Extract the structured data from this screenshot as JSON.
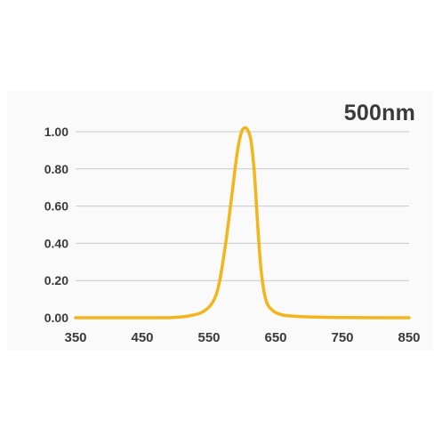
{
  "chart_data": {
    "type": "line",
    "title": "500nm",
    "xlabel": "",
    "ylabel": "",
    "xlim": [
      350,
      850
    ],
    "ylim": [
      0,
      1.0
    ],
    "x_ticks": [
      350,
      450,
      550,
      650,
      750,
      850
    ],
    "x_tick_labels": [
      "350",
      "450",
      "550",
      "650",
      "750",
      "850"
    ],
    "y_ticks": [
      0,
      0.2,
      0.4,
      0.6,
      0.8,
      1.0
    ],
    "y_tick_labels": [
      "0.00",
      "0.20",
      "0.40",
      "0.60",
      "0.80",
      "1.00"
    ],
    "grid": "horizontal",
    "legend": "none",
    "line_color": "#f2b51c",
    "grid_color": "#c8c8c8",
    "series": [
      {
        "x": [
          350,
          400,
          450,
          480,
          500,
          520,
          540,
          555,
          565,
          575,
          585,
          592,
          598,
          603,
          608,
          613,
          618,
          623,
          628,
          635,
          645,
          660,
          680,
          700,
          750,
          800,
          850
        ],
        "y": [
          0.0,
          0.0,
          0.0,
          0.0,
          0.002,
          0.01,
          0.03,
          0.08,
          0.18,
          0.4,
          0.68,
          0.88,
          0.99,
          1.02,
          1.01,
          0.95,
          0.78,
          0.5,
          0.26,
          0.1,
          0.04,
          0.015,
          0.008,
          0.004,
          0.001,
          0.0,
          0.0
        ]
      }
    ]
  }
}
